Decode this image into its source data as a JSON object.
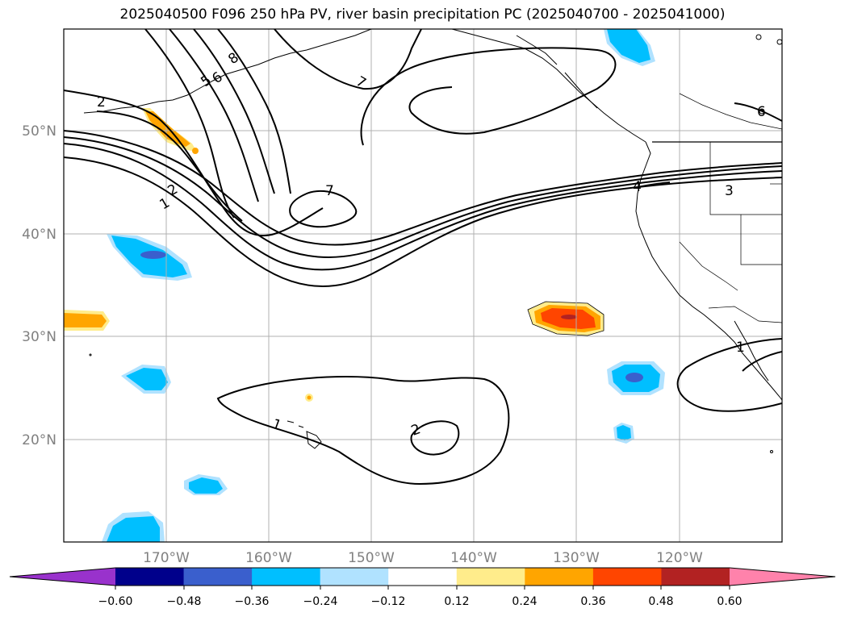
{
  "title": "2025040500 F096 250 hPa PV, river basin precipitation PC (2025040700 - 2025041000)",
  "map": {
    "lat_labels": [
      "50°N",
      "40°N",
      "30°N",
      "20°N"
    ],
    "lon_labels": [
      "170°W",
      "160°W",
      "150°W",
      "140°W",
      "130°W",
      "120°W"
    ],
    "contour_labels": [
      "2",
      "1",
      "2",
      "5",
      "6",
      "8",
      "7",
      "7",
      "4",
      "3",
      "6",
      "1",
      "2",
      "1"
    ]
  },
  "colorbar": {
    "colors": [
      "#9932cc",
      "#00008b",
      "#3a5fcd",
      "#00bfff",
      "#b0e2ff",
      "#ffffff",
      "#ffec8b",
      "#ffa500",
      "#ff4500",
      "#b22222",
      "#ff82ab"
    ],
    "ticks": [
      "−0.60",
      "−0.48",
      "−0.36",
      "−0.24",
      "−0.12",
      "0.12",
      "0.24",
      "0.36",
      "0.48",
      "0.60"
    ]
  }
}
